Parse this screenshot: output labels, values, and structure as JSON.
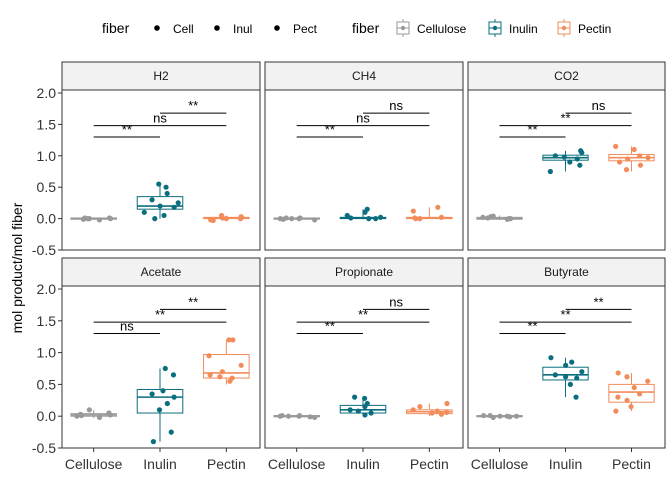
{
  "legend": {
    "shape": {
      "title": "fiber",
      "items": [
        "Cell",
        "Inul",
        "Pect"
      ]
    },
    "color": {
      "title": "fiber",
      "items": [
        {
          "label": "Cellulose",
          "color": "#999999"
        },
        {
          "label": "Inulin",
          "color": "#0b6e7e"
        },
        {
          "label": "Pectin",
          "color": "#f28c5b"
        }
      ]
    }
  },
  "chart_data": {
    "type": "boxplot",
    "ylabel": "mol product/mol fiber",
    "xlabel": "",
    "ylim": [
      -0.5,
      2.0
    ],
    "yticks": [
      "-0.5",
      "0.0",
      "0.5",
      "1.0",
      "1.5",
      "2.0"
    ],
    "categories": [
      "Cellulose",
      "Inulin",
      "Pectin"
    ],
    "panels": [
      {
        "title": "H2",
        "boxes": [
          {
            "group": "Cellulose",
            "q1": -0.01,
            "median": 0.0,
            "q3": 0.01,
            "min": -0.02,
            "max": 0.02,
            "points": [
              0.0,
              -0.01,
              0.01,
              0.0,
              -0.02,
              0.01,
              0.0
            ]
          },
          {
            "group": "Inulin",
            "q1": 0.15,
            "median": 0.2,
            "q3": 0.35,
            "min": 0.0,
            "max": 0.55,
            "points": [
              0.05,
              0.1,
              0.2,
              0.18,
              0.3,
              0.4,
              0.5,
              0.55,
              0.25,
              0.0
            ]
          },
          {
            "group": "Pectin",
            "q1": 0.0,
            "median": 0.01,
            "q3": 0.02,
            "min": -0.03,
            "max": 0.05,
            "points": [
              0.0,
              0.02,
              -0.02,
              0.01,
              0.03,
              -0.03,
              0.05,
              0.0
            ]
          }
        ],
        "comparisons": [
          {
            "pair": [
              "Cellulose",
              "Inulin"
            ],
            "y": 1.3,
            "label": "**"
          },
          {
            "pair": [
              "Cellulose",
              "Pectin"
            ],
            "y": 1.48,
            "label": "ns"
          },
          {
            "pair": [
              "Inulin",
              "Pectin"
            ],
            "y": 1.68,
            "label": "**"
          }
        ]
      },
      {
        "title": "CH4",
        "boxes": [
          {
            "group": "Cellulose",
            "q1": -0.01,
            "median": 0.0,
            "q3": 0.01,
            "min": -0.02,
            "max": 0.02,
            "points": [
              0.0,
              -0.01,
              0.01,
              0.0,
              -0.02,
              0.01,
              0.0
            ]
          },
          {
            "group": "Inulin",
            "q1": 0.0,
            "median": 0.01,
            "q3": 0.02,
            "min": -0.01,
            "max": 0.15,
            "points": [
              0.0,
              0.02,
              0.01,
              0.1,
              0.15,
              0.0,
              0.05
            ]
          },
          {
            "group": "Pectin",
            "q1": 0.0,
            "median": 0.01,
            "q3": 0.02,
            "min": -0.01,
            "max": 0.18,
            "points": [
              0.0,
              0.02,
              0.18,
              0.12,
              0.0,
              0.01
            ]
          }
        ],
        "comparisons": [
          {
            "pair": [
              "Cellulose",
              "Inulin"
            ],
            "y": 1.3,
            "label": "**"
          },
          {
            "pair": [
              "Cellulose",
              "Pectin"
            ],
            "y": 1.48,
            "label": "ns"
          },
          {
            "pair": [
              "Inulin",
              "Pectin"
            ],
            "y": 1.68,
            "label": "ns"
          }
        ]
      },
      {
        "title": "CO2",
        "boxes": [
          {
            "group": "Cellulose",
            "q1": -0.01,
            "median": 0.0,
            "q3": 0.02,
            "min": -0.02,
            "max": 0.05,
            "points": [
              0.0,
              0.02,
              0.03,
              -0.01,
              0.04,
              0.01,
              0.0
            ]
          },
          {
            "group": "Inulin",
            "q1": 0.93,
            "median": 0.97,
            "q3": 1.01,
            "min": 0.75,
            "max": 1.08,
            "points": [
              0.75,
              0.85,
              0.95,
              1.0,
              1.05,
              0.9,
              0.98,
              1.08
            ]
          },
          {
            "group": "Pectin",
            "q1": 0.92,
            "median": 0.97,
            "q3": 1.02,
            "min": 0.75,
            "max": 1.15,
            "points": [
              0.78,
              0.85,
              0.95,
              1.0,
              1.1,
              1.15,
              0.9,
              0.97
            ]
          }
        ],
        "comparisons": [
          {
            "pair": [
              "Cellulose",
              "Inulin"
            ],
            "y": 1.3,
            "label": "**"
          },
          {
            "pair": [
              "Cellulose",
              "Pectin"
            ],
            "y": 1.48,
            "label": "**"
          },
          {
            "pair": [
              "Inulin",
              "Pectin"
            ],
            "y": 1.68,
            "label": "ns"
          }
        ]
      },
      {
        "title": "Acetate",
        "boxes": [
          {
            "group": "Cellulose",
            "q1": 0.0,
            "median": 0.02,
            "q3": 0.04,
            "min": -0.03,
            "max": 0.1,
            "points": [
              0.0,
              0.02,
              0.05,
              0.1,
              -0.02,
              0.03,
              0.01
            ]
          },
          {
            "group": "Inulin",
            "q1": 0.05,
            "median": 0.3,
            "q3": 0.42,
            "min": -0.4,
            "max": 0.75,
            "points": [
              -0.4,
              -0.25,
              0.1,
              0.3,
              0.35,
              0.4,
              0.65,
              0.75,
              0.2
            ]
          },
          {
            "group": "Pectin",
            "q1": 0.6,
            "median": 0.68,
            "q3": 0.97,
            "min": 0.5,
            "max": 1.2,
            "points": [
              0.55,
              0.6,
              0.65,
              0.7,
              0.8,
              0.95,
              1.2,
              1.2,
              0.62
            ]
          }
        ],
        "comparisons": [
          {
            "pair": [
              "Cellulose",
              "Inulin"
            ],
            "y": 1.3,
            "label": "ns"
          },
          {
            "pair": [
              "Cellulose",
              "Pectin"
            ],
            "y": 1.48,
            "label": "**"
          },
          {
            "pair": [
              "Inulin",
              "Pectin"
            ],
            "y": 1.68,
            "label": "**"
          }
        ]
      },
      {
        "title": "Propionate",
        "boxes": [
          {
            "group": "Cellulose",
            "q1": -0.01,
            "median": 0.0,
            "q3": 0.01,
            "min": -0.02,
            "max": 0.02,
            "points": [
              0.0,
              -0.01,
              0.01,
              0.0,
              -0.02,
              0.01,
              0.0
            ]
          },
          {
            "group": "Inulin",
            "q1": 0.05,
            "median": 0.1,
            "q3": 0.17,
            "min": 0.0,
            "max": 0.3,
            "points": [
              0.02,
              0.05,
              0.1,
              0.15,
              0.2,
              0.28,
              0.3,
              0.08
            ]
          },
          {
            "group": "Pectin",
            "q1": 0.04,
            "median": 0.07,
            "q3": 0.1,
            "min": 0.0,
            "max": 0.2,
            "points": [
              0.03,
              0.05,
              0.08,
              0.1,
              0.15,
              0.2,
              0.06
            ]
          }
        ],
        "comparisons": [
          {
            "pair": [
              "Cellulose",
              "Inulin"
            ],
            "y": 1.3,
            "label": "**"
          },
          {
            "pair": [
              "Cellulose",
              "Pectin"
            ],
            "y": 1.48,
            "label": "**"
          },
          {
            "pair": [
              "Inulin",
              "Pectin"
            ],
            "y": 1.68,
            "label": "ns"
          }
        ]
      },
      {
        "title": "Butyrate",
        "boxes": [
          {
            "group": "Cellulose",
            "q1": -0.01,
            "median": 0.0,
            "q3": 0.01,
            "min": -0.02,
            "max": 0.02,
            "points": [
              0.0,
              -0.01,
              0.01,
              0.0,
              -0.02,
              0.01,
              0.0
            ]
          },
          {
            "group": "Inulin",
            "q1": 0.57,
            "median": 0.65,
            "q3": 0.77,
            "min": 0.3,
            "max": 0.92,
            "points": [
              0.3,
              0.5,
              0.6,
              0.65,
              0.7,
              0.8,
              0.85,
              0.92,
              0.62
            ]
          },
          {
            "group": "Pectin",
            "q1": 0.22,
            "median": 0.38,
            "q3": 0.5,
            "min": 0.08,
            "max": 0.68,
            "points": [
              0.08,
              0.15,
              0.25,
              0.35,
              0.45,
              0.55,
              0.62,
              0.68,
              0.3
            ]
          }
        ],
        "comparisons": [
          {
            "pair": [
              "Cellulose",
              "Inulin"
            ],
            "y": 1.3,
            "label": "**"
          },
          {
            "pair": [
              "Cellulose",
              "Pectin"
            ],
            "y": 1.48,
            "label": "**"
          },
          {
            "pair": [
              "Inulin",
              "Pectin"
            ],
            "y": 1.68,
            "label": "**"
          }
        ]
      }
    ]
  }
}
